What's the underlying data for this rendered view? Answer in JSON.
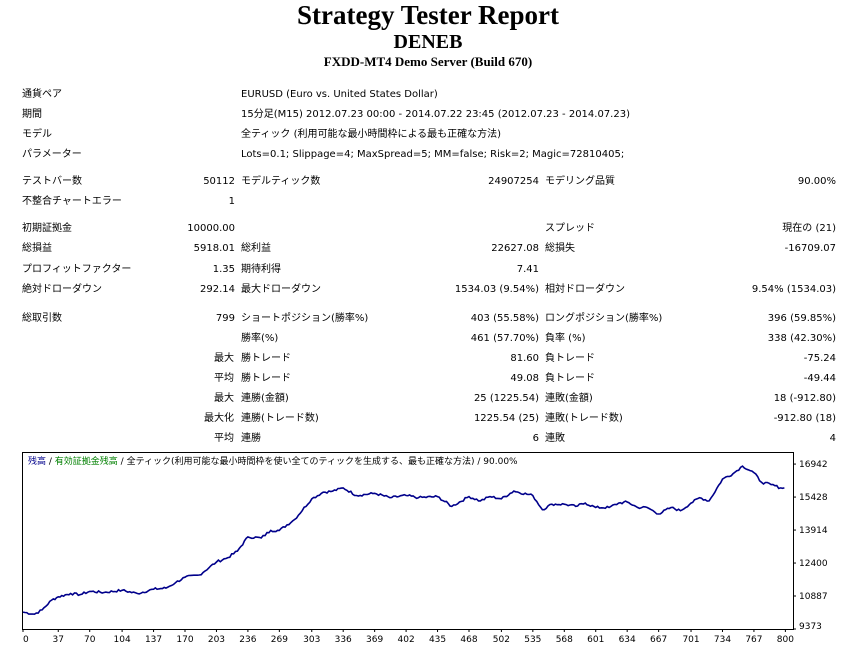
{
  "header": {
    "title": "Strategy Tester Report",
    "subtitle": "DENEB",
    "server": "FXDD-MT4 Demo Server (Build 670)"
  },
  "info": [
    {
      "label": "通貨ペア",
      "value": "EURUSD (Euro vs. United States Dollar)"
    },
    {
      "label": "期間",
      "value": "15分足(M15) 2012.07.23 00:00 - 2014.07.22 23:45 (2012.07.23 - 2014.07.23)"
    },
    {
      "label": "モデル",
      "value": "全ティック (利用可能な最小時間枠による最も正確な方法)"
    },
    {
      "label": "パラメーター",
      "value": "Lots=0.1; Slippage=4; MaxSpread=5; MM=false; Risk=2; Magic=72810405;"
    }
  ],
  "stats": {
    "bars_label": "テストバー数",
    "bars_value": "50112",
    "ticks_label": "モデルティック数",
    "ticks_value": "24907254",
    "quality_label": "モデリング品質",
    "quality_value": "90.00%",
    "mismatch_label": "不整合チャートエラー",
    "mismatch_value": "1",
    "deposit_label": "初期証拠金",
    "deposit_value": "10000.00",
    "spread_label": "スプレッド",
    "spread_value": "現在の (21)",
    "net_label": "総損益",
    "net_value": "5918.01",
    "gross_profit_label": "総利益",
    "gross_profit_value": "22627.08",
    "gross_loss_label": "総損失",
    "gross_loss_value": "-16709.07",
    "pf_label": "プロフィットファクター",
    "pf_value": "1.35",
    "payoff_label": "期待利得",
    "payoff_value": "7.41",
    "abs_dd_label": "絶対ドローダウン",
    "abs_dd_value": "292.14",
    "max_dd_label": "最大ドローダウン",
    "max_dd_value": "1534.03 (9.54%)",
    "rel_dd_label": "相対ドローダウン",
    "rel_dd_value": "9.54% (1534.03)",
    "trades_label": "総取引数",
    "trades_value": "799",
    "short_label": "ショートポジション(勝率%)",
    "short_value": "403 (55.58%)",
    "long_label": "ロングポジション(勝率%)",
    "long_value": "396 (59.85%)",
    "win_label": "勝率(%)",
    "win_value": "461 (57.70%)",
    "loss_label": "負率 (%)",
    "loss_value": "338 (42.30%)",
    "rows": [
      {
        "prefix": "最大",
        "l1": "勝トレード",
        "v1": "81.60",
        "l2": "負トレード",
        "v2": "-75.24"
      },
      {
        "prefix": "平均",
        "l1": "勝トレード",
        "v1": "49.08",
        "l2": "負トレード",
        "v2": "-49.44"
      },
      {
        "prefix": "最大",
        "l1": "連勝(金額)",
        "v1": "25 (1225.54)",
        "l2": "連敗(金額)",
        "v2": "18 (-912.80)"
      },
      {
        "prefix": "最大化",
        "l1": "連勝(トレード数)",
        "v1": "1225.54 (25)",
        "l2": "連敗(トレード数)",
        "v2": "-912.80 (18)"
      },
      {
        "prefix": "平均",
        "l1": "連勝",
        "v1": "6",
        "l2": "連敗",
        "v2": "4"
      }
    ]
  },
  "colors": {
    "line": "#00008b",
    "legend_balance": "#00008b",
    "legend_equity": "#008000"
  },
  "chart_data": {
    "type": "line",
    "legend_balance": "残高",
    "legend_sep1": " / ",
    "legend_equity": "有効証拠金残高",
    "legend_sep2": " / ",
    "legend_model": "全ティック(利用可能な最小時間枠を使い全てのティックを生成する、最も正確な方法)",
    "legend_sep3": " / ",
    "legend_quality": "90.00%",
    "x_ticks": [
      0,
      37,
      70,
      104,
      137,
      170,
      203,
      236,
      269,
      303,
      336,
      369,
      402,
      435,
      468,
      502,
      535,
      568,
      601,
      634,
      667,
      701,
      734,
      767,
      800
    ],
    "y_ticks": [
      9373,
      10887,
      12400,
      13914,
      15428,
      16942
    ],
    "xlim": [
      0,
      808
    ],
    "ylim": [
      9373,
      17450
    ],
    "x": [
      0,
      12,
      20,
      30,
      37,
      50,
      60,
      70,
      85,
      104,
      120,
      137,
      150,
      160,
      170,
      185,
      203,
      215,
      225,
      236,
      250,
      260,
      269,
      285,
      303,
      315,
      325,
      336,
      350,
      369,
      385,
      402,
      415,
      435,
      450,
      468,
      480,
      490,
      502,
      515,
      535,
      545,
      555,
      568,
      580,
      590,
      601,
      615,
      625,
      634,
      645,
      655,
      667,
      680,
      690,
      701,
      710,
      720,
      734,
      745,
      755,
      767,
      775,
      785,
      795,
      799
    ],
    "y": [
      10150,
      10050,
      10250,
      10700,
      10850,
      11000,
      10950,
      11100,
      11050,
      11150,
      11000,
      11200,
      11250,
      11500,
      11750,
      11850,
      12450,
      12650,
      12950,
      13600,
      13550,
      13900,
      13900,
      14400,
      15350,
      15650,
      15700,
      15850,
      15500,
      15600,
      15400,
      15500,
      15400,
      15450,
      15000,
      15450,
      15250,
      15450,
      15350,
      15700,
      15500,
      14850,
      15100,
      15100,
      15000,
      15150,
      14950,
      14950,
      15150,
      15200,
      14950,
      14950,
      14650,
      14950,
      14800,
      15150,
      15400,
      15250,
      16250,
      16500,
      16850,
      16550,
      16100,
      16000,
      15850,
      15850
    ]
  }
}
